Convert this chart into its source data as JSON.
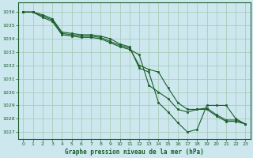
{
  "bg_color": "#cce8ee",
  "grid_color": "#aaccbb",
  "line_color": "#1a5c28",
  "marker_color": "#1a5c28",
  "title": "Graphe pression niveau de la mer (hPa)",
  "xlim": [
    -0.5,
    23.5
  ],
  "ylim": [
    1026.5,
    1036.7
  ],
  "yticks": [
    1027,
    1028,
    1029,
    1030,
    1031,
    1032,
    1033,
    1034,
    1035,
    1036
  ],
  "xticks": [
    0,
    1,
    2,
    3,
    4,
    5,
    6,
    7,
    8,
    9,
    10,
    11,
    12,
    13,
    14,
    15,
    16,
    17,
    18,
    19,
    20,
    21,
    22,
    23
  ],
  "series": [
    {
      "x": [
        0,
        1,
        2,
        3,
        4,
        5,
        6,
        7,
        8,
        9,
        10,
        11,
        12,
        13,
        14,
        15,
        16,
        17,
        18,
        19,
        20,
        21,
        22,
        23
      ],
      "y": [
        1036.0,
        1036.0,
        1035.6,
        1035.3,
        1034.3,
        1034.2,
        1034.1,
        1034.1,
        1034.0,
        1033.7,
        1033.4,
        1033.2,
        1032.8,
        1030.5,
        1030.0,
        1029.5,
        1028.7,
        1028.5,
        1028.7,
        1028.7,
        1028.2,
        1027.8,
        1027.8,
        1027.6
      ]
    },
    {
      "x": [
        0,
        1,
        2,
        3,
        4,
        5,
        6,
        7,
        8,
        9,
        10,
        11,
        12,
        13,
        14,
        15,
        16,
        17,
        18,
        19,
        20,
        21,
        22,
        23
      ],
      "y": [
        1036.0,
        1036.0,
        1035.7,
        1035.4,
        1034.4,
        1034.3,
        1034.2,
        1034.2,
        1034.1,
        1033.8,
        1033.5,
        1033.3,
        1032.0,
        1031.7,
        1031.5,
        1030.3,
        1029.2,
        1028.7,
        1028.7,
        1028.8,
        1028.3,
        1027.9,
        1027.9,
        1027.6
      ]
    },
    {
      "x": [
        0,
        1,
        2,
        3,
        4,
        5,
        6,
        7,
        8,
        9,
        10,
        11,
        12,
        13,
        14,
        15,
        16,
        17,
        18,
        19,
        20,
        21,
        22,
        23
      ],
      "y": [
        1036.0,
        1036.0,
        1035.8,
        1035.5,
        1034.5,
        1034.4,
        1034.3,
        1034.3,
        1034.2,
        1034.0,
        1033.6,
        1033.4,
        1031.8,
        1031.5,
        1029.2,
        1028.5,
        1027.7,
        1027.0,
        1027.2,
        1029.0,
        1029.0,
        1029.0,
        1028.0,
        1027.6
      ]
    }
  ]
}
